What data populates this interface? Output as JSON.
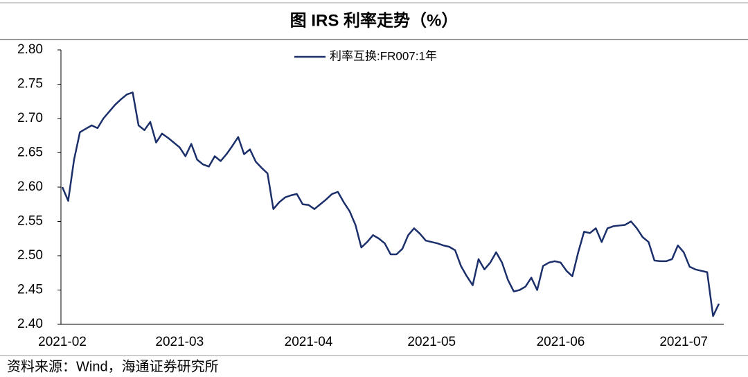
{
  "chart_data": {
    "type": "line",
    "title": "图 IRS 利率走势（%）",
    "source": "资料来源：Wind，海通证券研究所",
    "categories": [
      "2021-02",
      null,
      null,
      null,
      null,
      null,
      null,
      null,
      null,
      null,
      null,
      null,
      null,
      null,
      null,
      null,
      null,
      null,
      null,
      null,
      "2021-03",
      null,
      null,
      null,
      null,
      null,
      null,
      null,
      null,
      null,
      null,
      null,
      null,
      null,
      null,
      null,
      null,
      null,
      null,
      null,
      null,
      null,
      "2021-04",
      null,
      null,
      null,
      null,
      null,
      null,
      null,
      null,
      null,
      null,
      null,
      null,
      null,
      null,
      null,
      null,
      null,
      null,
      null,
      null,
      "2021-05",
      null,
      null,
      null,
      null,
      null,
      null,
      null,
      null,
      null,
      null,
      null,
      null,
      null,
      null,
      null,
      null,
      null,
      null,
      null,
      null,
      null,
      "2021-06",
      null,
      null,
      null,
      null,
      null,
      null,
      null,
      null,
      null,
      null,
      null,
      null,
      null,
      null,
      null,
      null,
      null,
      null,
      null,
      null,
      "2021-07",
      null,
      null,
      null,
      null,
      null,
      null
    ],
    "series": [
      {
        "name": "利率互换:FR007:1年",
        "color": "#1b2f6b",
        "values": [
          2.6,
          2.58,
          2.64,
          2.68,
          2.685,
          2.69,
          2.686,
          2.7,
          2.71,
          2.72,
          2.728,
          2.735,
          2.738,
          2.69,
          2.683,
          2.695,
          2.665,
          2.678,
          2.672,
          2.665,
          2.658,
          2.645,
          2.663,
          2.64,
          2.633,
          2.63,
          2.645,
          2.638,
          2.648,
          2.66,
          2.673,
          2.648,
          2.655,
          2.637,
          2.628,
          2.62,
          2.568,
          2.578,
          2.585,
          2.588,
          2.59,
          2.575,
          2.574,
          2.568,
          2.575,
          2.582,
          2.59,
          2.593,
          2.578,
          2.565,
          2.545,
          2.512,
          2.52,
          2.53,
          2.525,
          2.518,
          2.502,
          2.502,
          2.51,
          2.53,
          2.54,
          2.532,
          2.522,
          2.52,
          2.518,
          2.515,
          2.513,
          2.508,
          2.485,
          2.47,
          2.457,
          2.495,
          2.48,
          2.49,
          2.505,
          2.49,
          2.465,
          2.448,
          2.45,
          2.455,
          2.468,
          2.45,
          2.485,
          2.49,
          2.492,
          2.49,
          2.478,
          2.47,
          2.505,
          2.535,
          2.533,
          2.54,
          2.52,
          2.54,
          2.543,
          2.544,
          2.545,
          2.55,
          2.54,
          2.527,
          2.52,
          2.493,
          2.492,
          2.492,
          2.495,
          2.515,
          2.505,
          2.484,
          2.48,
          2.478,
          2.476,
          2.412,
          2.43
        ]
      }
    ],
    "ylim": [
      2.4,
      2.8
    ],
    "yticks": [
      {
        "value": 2.4,
        "label": "2.40"
      },
      2.45,
      {
        "value": 2.5,
        "label": "2.50"
      },
      2.55,
      {
        "value": 2.6,
        "label": "2.60"
      },
      2.65,
      {
        "value": 2.7,
        "label": "2.70"
      },
      2.75,
      {
        "value": 2.8,
        "label": "2.80"
      }
    ],
    "grid": false,
    "legend": "top"
  }
}
